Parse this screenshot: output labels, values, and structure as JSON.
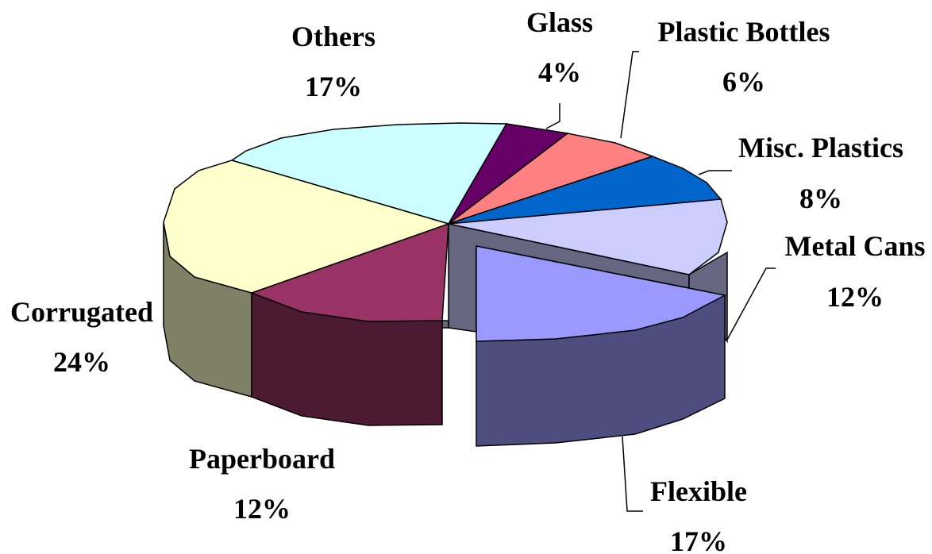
{
  "chart_data": {
    "type": "pie",
    "three_d": true,
    "exploded": [
      "Flexible"
    ],
    "legend": "none",
    "slices": [
      {
        "name": "Others",
        "label": "Others",
        "pct_label": "17%",
        "value": 17,
        "color": "#CCFFFF",
        "text_color": "#000000"
      },
      {
        "name": "Glass",
        "label": "Glass",
        "pct_label": "4%",
        "value": 4,
        "color": "#660066",
        "text_color": "#000000"
      },
      {
        "name": "Plastic Bottles",
        "label": "Plastic Bottles",
        "pct_label": "6%",
        "value": 6,
        "color": "#FF8080",
        "text_color": "#000000"
      },
      {
        "name": "Misc. Plastics",
        "label": "Misc. Plastics",
        "pct_label": "8%",
        "value": 8,
        "color": "#0066CC",
        "text_color": "#000000"
      },
      {
        "name": "Metal Cans",
        "label": "Metal Cans",
        "pct_label": "12%",
        "value": 12,
        "color": "#CCCCFF",
        "text_color": "#000000"
      },
      {
        "name": "Flexible",
        "label": "Flexible",
        "pct_label": "17%",
        "value": 17,
        "color": "#9999FF",
        "text_color": "#FF0000"
      },
      {
        "name": "Paperboard",
        "label": "Paperboard",
        "pct_label": "12%",
        "value": 12,
        "color": "#993366",
        "text_color": "#000000"
      },
      {
        "name": "Corrugated",
        "label": "Corrugated",
        "pct_label": "24%",
        "value": 24,
        "color": "#FFFFCC",
        "text_color": "#000000"
      }
    ]
  }
}
